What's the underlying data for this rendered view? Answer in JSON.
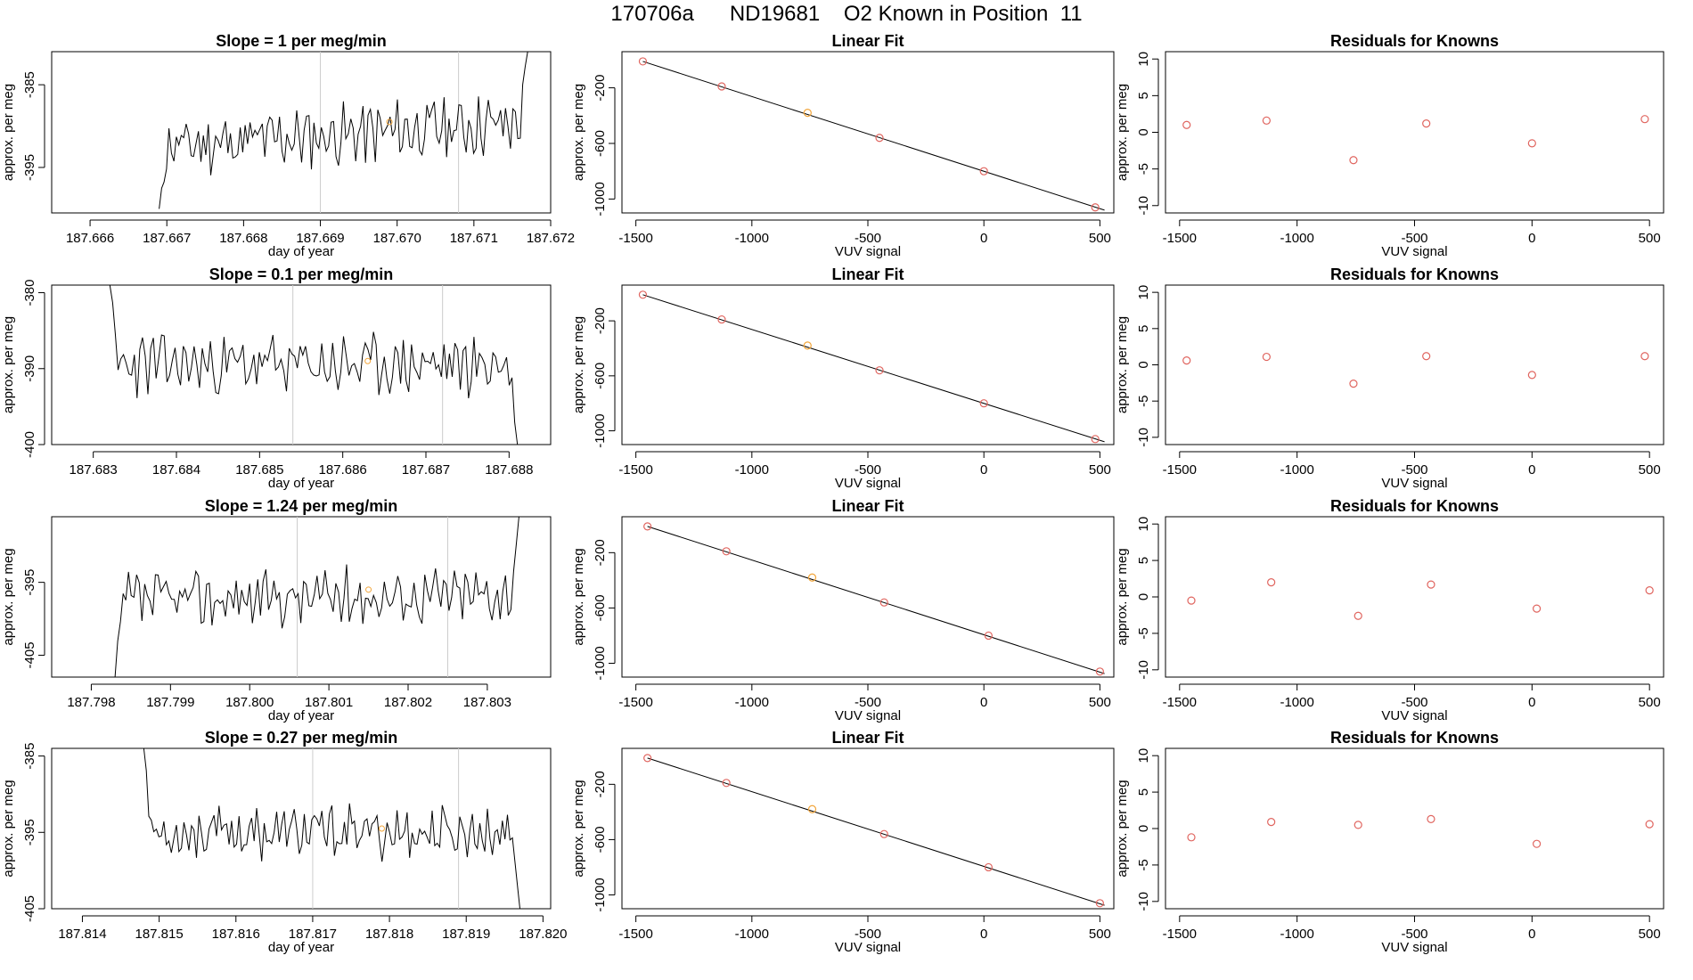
{
  "figure_title": "170706a      ND19681    O2 Known in Position  11",
  "colors": {
    "line": "#000000",
    "frame": "#000000",
    "marker_known": "#e0655f",
    "marker_orange": "#f2a53a",
    "vline": "#cccccc"
  },
  "chart_data": [
    {
      "type": "line",
      "title": "Slope =  1  per meg/min",
      "xlabel": "day of year",
      "ylabel": "approx. per meg",
      "xlim": [
        187.6655,
        187.672
      ],
      "ylim": [
        -400.5,
        -381
      ],
      "xticks": [
        "187.666",
        "187.667",
        "187.668",
        "187.669",
        "187.670",
        "187.671",
        "187.672"
      ],
      "yticks": [
        "-385",
        "-395"
      ],
      "vlines": [
        187.669,
        187.6708
      ],
      "highlight": {
        "x": 187.6699,
        "y": -389.5
      },
      "x_start": 187.6669,
      "x_end": 187.6717,
      "ymin_val": -400,
      "ymax_val": -381,
      "base": -391,
      "amp": 3,
      "drift": 3,
      "seed": 11,
      "start_level": -400,
      "end_level": -381
    },
    {
      "type": "scatter",
      "title": "Linear Fit",
      "xlabel": "VUV signal",
      "ylabel": "approx. per meg",
      "xlim": [
        -1560,
        560
      ],
      "ylim": [
        -1100,
        60
      ],
      "xticks": [
        -1500,
        -1000,
        -500,
        0,
        500
      ],
      "yticks": [
        -200,
        -600,
        -1000
      ],
      "x": [
        -1470,
        -1130,
        -760,
        -450,
        0,
        480
      ],
      "y": [
        -10,
        -190,
        -380,
        -560,
        -800,
        -1060
      ],
      "orange_index": 2,
      "fit": {
        "x0": -1470,
        "y0": -10,
        "x1": 520,
        "y1": -1080
      }
    },
    {
      "type": "scatter",
      "title": "Residuals for Knowns",
      "xlabel": "VUV signal",
      "ylabel": "approx. per meg",
      "xlim": [
        -1560,
        560
      ],
      "ylim": [
        -11,
        11
      ],
      "xticks": [
        -1500,
        -1000,
        -500,
        0,
        500
      ],
      "yticks": [
        10,
        5,
        0,
        -5,
        -10
      ],
      "x": [
        -1470,
        -1130,
        -760,
        -450,
        0,
        480
      ],
      "y": [
        1,
        1.6,
        -3.8,
        1.2,
        -1.5,
        1.8
      ]
    },
    {
      "type": "line",
      "title": "Slope =  0.1  per meg/min",
      "xlabel": "day of year",
      "ylabel": "approx. per meg",
      "xlim": [
        187.6825,
        187.6885
      ],
      "ylim": [
        -400,
        -379
      ],
      "xticks": [
        "187.683",
        "187.684",
        "187.685",
        "187.686",
        "187.687",
        "187.688"
      ],
      "yticks": [
        "-380",
        "-390",
        "-400"
      ],
      "vlines": [
        187.6854,
        187.6872
      ],
      "highlight": {
        "x": 187.6863,
        "y": -389
      },
      "x_start": 187.6832,
      "x_end": 187.6881,
      "ymin_val": -400,
      "ymax_val": -379,
      "base": -389.5,
      "amp": 3.3,
      "drift": 0,
      "seed": 23,
      "start_level": -379,
      "end_level": -400
    },
    {
      "type": "scatter",
      "title": "Linear Fit",
      "xlabel": "VUV signal",
      "ylabel": "approx. per meg",
      "xlim": [
        -1560,
        560
      ],
      "ylim": [
        -1100,
        60
      ],
      "xticks": [
        -1500,
        -1000,
        -500,
        0,
        500
      ],
      "yticks": [
        -200,
        -600,
        -1000
      ],
      "x": [
        -1470,
        -1130,
        -760,
        -450,
        0,
        480
      ],
      "y": [
        -10,
        -190,
        -380,
        -560,
        -800,
        -1060
      ],
      "orange_index": 2,
      "fit": {
        "x0": -1470,
        "y0": -10,
        "x1": 520,
        "y1": -1080
      }
    },
    {
      "type": "scatter",
      "title": "Residuals for Knowns",
      "xlabel": "VUV signal",
      "ylabel": "approx. per meg",
      "xlim": [
        -1560,
        560
      ],
      "ylim": [
        -11,
        11
      ],
      "xticks": [
        -1500,
        -1000,
        -500,
        0,
        500
      ],
      "yticks": [
        10,
        5,
        0,
        -5,
        -10
      ],
      "x": [
        -1470,
        -1130,
        -760,
        -450,
        0,
        480
      ],
      "y": [
        0.6,
        1.1,
        -2.6,
        1.2,
        -1.4,
        1.2
      ]
    },
    {
      "type": "line",
      "title": "Slope =  1.24  per meg/min",
      "xlabel": "day of year",
      "ylabel": "approx. per meg",
      "xlim": [
        187.7975,
        187.8038
      ],
      "ylim": [
        -408,
        -386
      ],
      "xticks": [
        "187.798",
        "187.799",
        "187.800",
        "187.801",
        "187.802",
        "187.803"
      ],
      "yticks": [
        "-395",
        "-405"
      ],
      "vlines": [
        187.8006,
        187.8025
      ],
      "highlight": {
        "x": 187.8015,
        "y": -396
      },
      "x_start": 187.7983,
      "x_end": 187.8034,
      "ymin_val": -408,
      "ymax_val": -386,
      "base": -397,
      "amp": 3.2,
      "drift": 1,
      "seed": 37,
      "start_level": -408,
      "end_level": -386
    },
    {
      "type": "scatter",
      "title": "Linear Fit",
      "xlabel": "VUV signal",
      "ylabel": "approx. per meg",
      "xlim": [
        -1560,
        560
      ],
      "ylim": [
        -1100,
        60
      ],
      "xticks": [
        -1500,
        -1000,
        -500,
        0,
        500
      ],
      "yticks": [
        -200,
        -600,
        -1000
      ],
      "x": [
        -1450,
        -1110,
        -740,
        -430,
        20,
        500
      ],
      "y": [
        -10,
        -190,
        -380,
        -560,
        -800,
        -1060
      ],
      "orange_index": 2,
      "fit": {
        "x0": -1450,
        "y0": -10,
        "x1": 520,
        "y1": -1075
      }
    },
    {
      "type": "scatter",
      "title": "Residuals for Knowns",
      "xlabel": "VUV signal",
      "ylabel": "approx. per meg",
      "xlim": [
        -1560,
        560
      ],
      "ylim": [
        -11,
        11
      ],
      "xticks": [
        -1500,
        -1000,
        -500,
        0,
        500
      ],
      "yticks": [
        10,
        5,
        0,
        -5,
        -10
      ],
      "x": [
        -1450,
        -1110,
        -740,
        -430,
        20,
        500
      ],
      "y": [
        -0.5,
        2,
        -2.6,
        1.7,
        -1.6,
        0.9
      ]
    },
    {
      "type": "line",
      "title": "Slope =  0.27  per meg/min",
      "xlabel": "day of year",
      "ylabel": "approx. per meg",
      "xlim": [
        187.8136,
        187.8201
      ],
      "ylim": [
        -405,
        -384
      ],
      "xticks": [
        "187.814",
        "187.815",
        "187.816",
        "187.817",
        "187.818",
        "187.819",
        "187.820"
      ],
      "yticks": [
        "-385",
        "-395",
        "-405"
      ],
      "vlines": [
        187.817,
        187.8189
      ],
      "highlight": {
        "x": 187.8179,
        "y": -394.5
      },
      "x_start": 187.8148,
      "x_end": 187.8197,
      "ymin_val": -405,
      "ymax_val": -384,
      "base": -395,
      "amp": 2.8,
      "drift": 0,
      "seed": 53,
      "start_level": -384,
      "end_level": -405
    },
    {
      "type": "scatter",
      "title": "Linear Fit",
      "xlabel": "VUV signal",
      "ylabel": "approx. per meg",
      "xlim": [
        -1560,
        560
      ],
      "ylim": [
        -1100,
        60
      ],
      "xticks": [
        -1500,
        -1000,
        -500,
        0,
        500
      ],
      "yticks": [
        -200,
        -600,
        -1000
      ],
      "x": [
        -1450,
        -1110,
        -740,
        -430,
        20,
        500
      ],
      "y": [
        -10,
        -190,
        -380,
        -560,
        -800,
        -1060
      ],
      "orange_index": 2,
      "fit": {
        "x0": -1450,
        "y0": -10,
        "x1": 520,
        "y1": -1075
      }
    },
    {
      "type": "scatter",
      "title": "Residuals for Knowns",
      "xlabel": "VUV signal",
      "ylabel": "approx. per meg",
      "xlim": [
        -1560,
        560
      ],
      "ylim": [
        -11,
        11
      ],
      "xticks": [
        -1500,
        -1000,
        -500,
        0,
        500
      ],
      "yticks": [
        10,
        5,
        0,
        -5,
        -10
      ],
      "x": [
        -1450,
        -1110,
        -740,
        -430,
        20,
        500
      ],
      "y": [
        -1.2,
        0.9,
        0.5,
        1.3,
        -2.1,
        0.6
      ]
    }
  ]
}
